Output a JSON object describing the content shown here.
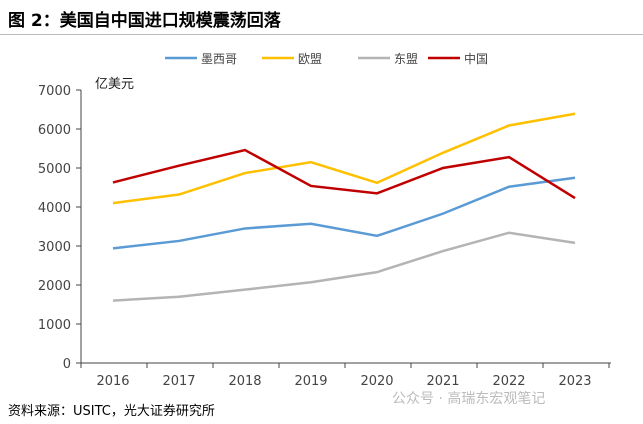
{
  "title": "图 2：美国自中国进口规模震荡回落",
  "source": "资料来源：USITC，光大证券研究所",
  "watermark": "公众号 · 高瑞东宏观笔记",
  "chart_data": {
    "type": "line",
    "title": "图 2：美国自中国进口规模震荡回落",
    "ylabel": "亿美元",
    "xlabel": "",
    "x": [
      "2016",
      "2017",
      "2018",
      "2019",
      "2020",
      "2021",
      "2022",
      "2023"
    ],
    "ylim": [
      0,
      7000
    ],
    "yticks": [
      "0",
      "1000",
      "2000",
      "3000",
      "4000",
      "5000",
      "6000",
      "7000"
    ],
    "legend_position": "top",
    "grid": false,
    "series": [
      {
        "name": "墨西哥",
        "color": "#5b9bd5",
        "values": [
          2940,
          3130,
          3450,
          3570,
          3260,
          3830,
          4520,
          4750
        ]
      },
      {
        "name": "欧盟",
        "color": "#ffc000",
        "values": [
          4100,
          4320,
          4870,
          5150,
          4620,
          5390,
          6090,
          6390
        ]
      },
      {
        "name": "东盟",
        "color": "#b4b4b4",
        "values": [
          1600,
          1700,
          1880,
          2070,
          2330,
          2870,
          3340,
          3080
        ]
      },
      {
        "name": "中国",
        "color": "#c00000",
        "values": [
          4630,
          5060,
          5460,
          4540,
          4350,
          5000,
          5280,
          4230
        ]
      }
    ]
  }
}
